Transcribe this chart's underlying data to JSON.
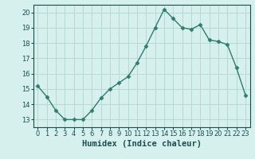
{
  "x": [
    0,
    1,
    2,
    3,
    4,
    5,
    6,
    7,
    8,
    9,
    10,
    11,
    12,
    13,
    14,
    15,
    16,
    17,
    18,
    19,
    20,
    21,
    22,
    23
  ],
  "y": [
    15.2,
    14.5,
    13.6,
    13.0,
    13.0,
    13.0,
    13.6,
    14.4,
    15.0,
    15.4,
    15.8,
    16.7,
    17.8,
    19.0,
    20.2,
    19.6,
    19.0,
    18.9,
    19.2,
    18.2,
    18.1,
    17.9,
    16.4,
    14.6
  ],
  "line_color": "#2e7d6e",
  "marker": "D",
  "marker_size": 2.5,
  "bg_color": "#d6f0ee",
  "grid_color": "#b8d8d4",
  "xlabel": "Humidex (Indice chaleur)",
  "ylim": [
    12.5,
    20.5
  ],
  "xlim": [
    -0.5,
    23.5
  ],
  "yticks": [
    13,
    14,
    15,
    16,
    17,
    18,
    19,
    20
  ],
  "xticks": [
    0,
    1,
    2,
    3,
    4,
    5,
    6,
    7,
    8,
    9,
    10,
    11,
    12,
    13,
    14,
    15,
    16,
    17,
    18,
    19,
    20,
    21,
    22,
    23
  ],
  "tick_label_color": "#1a5050",
  "axis_color": "#1a5050",
  "xlabel_color": "#1a5050",
  "tick_fontsize": 6.0,
  "xlabel_fontsize": 7.5
}
